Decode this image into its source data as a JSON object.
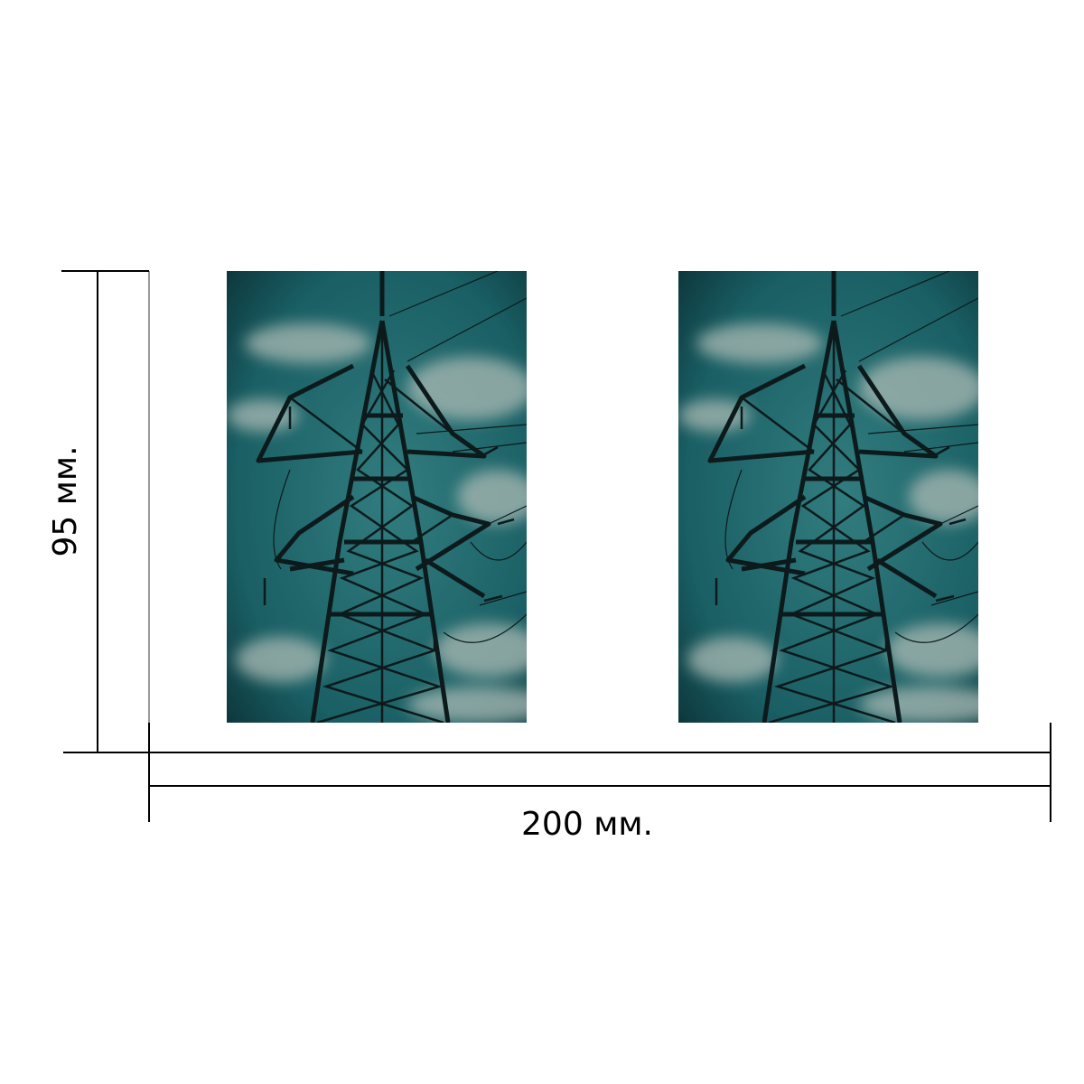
{
  "dimensions": {
    "height": "95 мм.",
    "width": "200 мм."
  }
}
